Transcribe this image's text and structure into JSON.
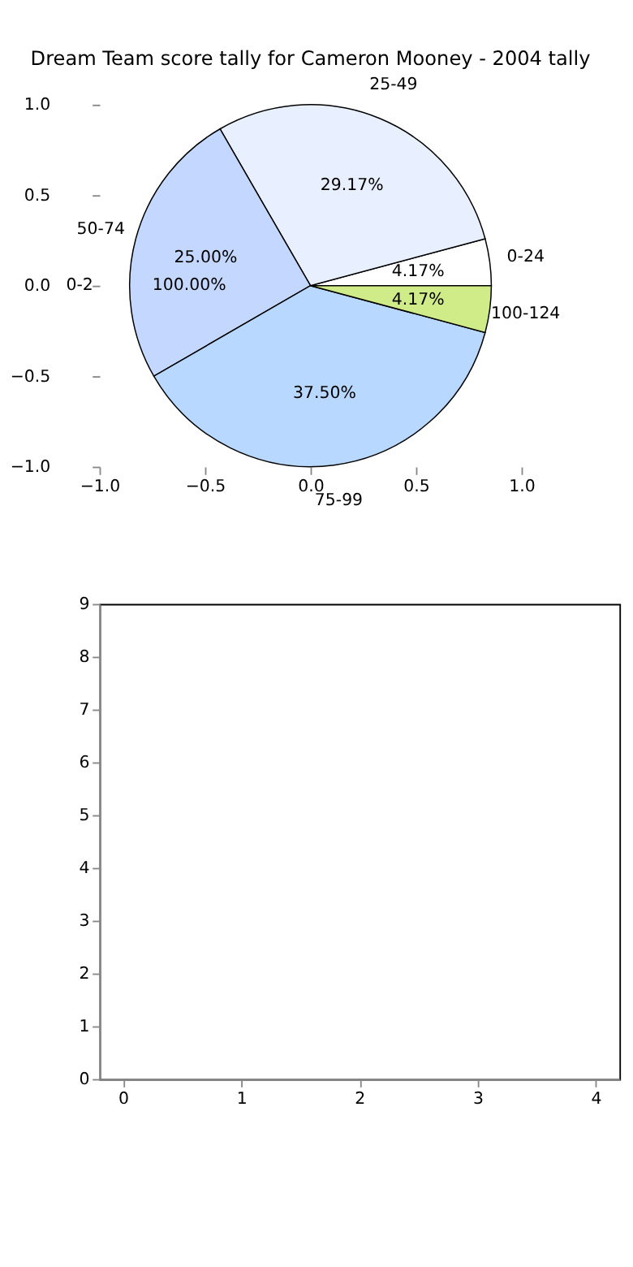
{
  "chart_data": [
    {
      "type": "pie",
      "title": "Dream Team score tally for Cameron Mooney - 2004 tally",
      "categories": [
        "0-24",
        "25-49",
        "50-74",
        "75-99",
        "100-124"
      ],
      "values": [
        4.17,
        29.17,
        25.0,
        37.5,
        4.17
      ],
      "colors": [
        "#ffffff",
        "#e8f0ff",
        "#c4d8ff",
        "#b8d8ff",
        "#d0ec88"
      ],
      "value_labels": [
        "4.17%",
        "29.17%",
        "25.00%",
        "37.50%",
        "4.17%"
      ],
      "annotations": [
        "0-2",
        "100.00%"
      ]
    },
    {
      "type": "scatter",
      "xlim": [
        -1,
        1
      ],
      "xticks": [
        {
          "value": -1,
          "label": "−1.0"
        },
        {
          "value": -0.5,
          "label": "−0.5"
        },
        {
          "value": 0,
          "label": "0.0"
        },
        {
          "value": 0.5,
          "label": "0.5"
        },
        {
          "value": 1,
          "label": "1.0"
        }
      ],
      "ylim": [
        -1,
        1
      ],
      "yticks": [
        {
          "value": -1,
          "label": "−1.0"
        },
        {
          "value": -0.5,
          "label": "−0.5"
        },
        {
          "value": 0,
          "label": "0.0"
        },
        {
          "value": 0.5,
          "label": "0.5"
        },
        {
          "value": 1,
          "label": "1.0"
        }
      ]
    },
    {
      "type": "scatter",
      "xlim": [
        -0.2,
        4.2
      ],
      "xticks": [
        0,
        1,
        2,
        3,
        4
      ],
      "ylim": [
        0,
        9
      ],
      "yticks": [
        0,
        1,
        2,
        3,
        4,
        5,
        6,
        7,
        8,
        9
      ]
    }
  ]
}
